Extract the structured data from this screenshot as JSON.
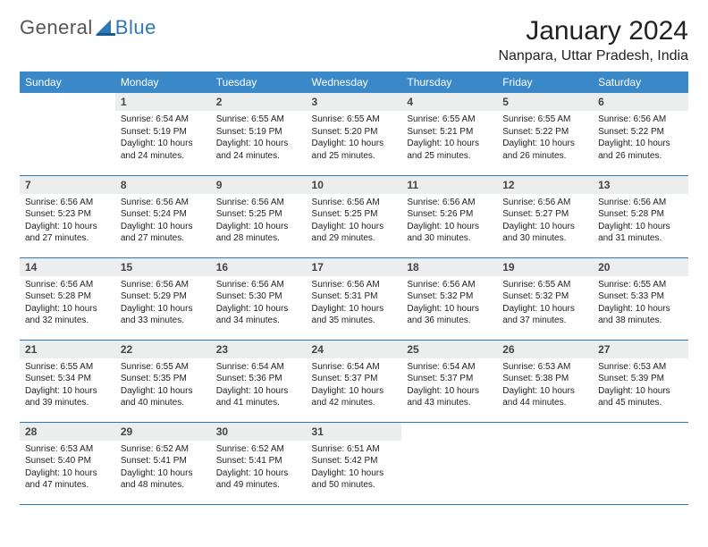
{
  "logo": {
    "text1": "General",
    "text2": "Blue"
  },
  "title": "January 2024",
  "location": "Nanpara, Uttar Pradesh, India",
  "colors": {
    "header_bg": "#3a88c8",
    "header_fg": "#ffffff",
    "daynum_bg": "#eceded",
    "border": "#2f78b7",
    "logo_gray": "#555555",
    "logo_blue": "#2f78b7"
  },
  "weekdays": [
    "Sunday",
    "Monday",
    "Tuesday",
    "Wednesday",
    "Thursday",
    "Friday",
    "Saturday"
  ],
  "weeks": [
    [
      null,
      {
        "n": "1",
        "sr": "6:54 AM",
        "ss": "5:19 PM",
        "dl": "10 hours and 24 minutes."
      },
      {
        "n": "2",
        "sr": "6:55 AM",
        "ss": "5:19 PM",
        "dl": "10 hours and 24 minutes."
      },
      {
        "n": "3",
        "sr": "6:55 AM",
        "ss": "5:20 PM",
        "dl": "10 hours and 25 minutes."
      },
      {
        "n": "4",
        "sr": "6:55 AM",
        "ss": "5:21 PM",
        "dl": "10 hours and 25 minutes."
      },
      {
        "n": "5",
        "sr": "6:55 AM",
        "ss": "5:22 PM",
        "dl": "10 hours and 26 minutes."
      },
      {
        "n": "6",
        "sr": "6:56 AM",
        "ss": "5:22 PM",
        "dl": "10 hours and 26 minutes."
      }
    ],
    [
      {
        "n": "7",
        "sr": "6:56 AM",
        "ss": "5:23 PM",
        "dl": "10 hours and 27 minutes."
      },
      {
        "n": "8",
        "sr": "6:56 AM",
        "ss": "5:24 PM",
        "dl": "10 hours and 27 minutes."
      },
      {
        "n": "9",
        "sr": "6:56 AM",
        "ss": "5:25 PM",
        "dl": "10 hours and 28 minutes."
      },
      {
        "n": "10",
        "sr": "6:56 AM",
        "ss": "5:25 PM",
        "dl": "10 hours and 29 minutes."
      },
      {
        "n": "11",
        "sr": "6:56 AM",
        "ss": "5:26 PM",
        "dl": "10 hours and 30 minutes."
      },
      {
        "n": "12",
        "sr": "6:56 AM",
        "ss": "5:27 PM",
        "dl": "10 hours and 30 minutes."
      },
      {
        "n": "13",
        "sr": "6:56 AM",
        "ss": "5:28 PM",
        "dl": "10 hours and 31 minutes."
      }
    ],
    [
      {
        "n": "14",
        "sr": "6:56 AM",
        "ss": "5:28 PM",
        "dl": "10 hours and 32 minutes."
      },
      {
        "n": "15",
        "sr": "6:56 AM",
        "ss": "5:29 PM",
        "dl": "10 hours and 33 minutes."
      },
      {
        "n": "16",
        "sr": "6:56 AM",
        "ss": "5:30 PM",
        "dl": "10 hours and 34 minutes."
      },
      {
        "n": "17",
        "sr": "6:56 AM",
        "ss": "5:31 PM",
        "dl": "10 hours and 35 minutes."
      },
      {
        "n": "18",
        "sr": "6:56 AM",
        "ss": "5:32 PM",
        "dl": "10 hours and 36 minutes."
      },
      {
        "n": "19",
        "sr": "6:55 AM",
        "ss": "5:32 PM",
        "dl": "10 hours and 37 minutes."
      },
      {
        "n": "20",
        "sr": "6:55 AM",
        "ss": "5:33 PM",
        "dl": "10 hours and 38 minutes."
      }
    ],
    [
      {
        "n": "21",
        "sr": "6:55 AM",
        "ss": "5:34 PM",
        "dl": "10 hours and 39 minutes."
      },
      {
        "n": "22",
        "sr": "6:55 AM",
        "ss": "5:35 PM",
        "dl": "10 hours and 40 minutes."
      },
      {
        "n": "23",
        "sr": "6:54 AM",
        "ss": "5:36 PM",
        "dl": "10 hours and 41 minutes."
      },
      {
        "n": "24",
        "sr": "6:54 AM",
        "ss": "5:37 PM",
        "dl": "10 hours and 42 minutes."
      },
      {
        "n": "25",
        "sr": "6:54 AM",
        "ss": "5:37 PM",
        "dl": "10 hours and 43 minutes."
      },
      {
        "n": "26",
        "sr": "6:53 AM",
        "ss": "5:38 PM",
        "dl": "10 hours and 44 minutes."
      },
      {
        "n": "27",
        "sr": "6:53 AM",
        "ss": "5:39 PM",
        "dl": "10 hours and 45 minutes."
      }
    ],
    [
      {
        "n": "28",
        "sr": "6:53 AM",
        "ss": "5:40 PM",
        "dl": "10 hours and 47 minutes."
      },
      {
        "n": "29",
        "sr": "6:52 AM",
        "ss": "5:41 PM",
        "dl": "10 hours and 48 minutes."
      },
      {
        "n": "30",
        "sr": "6:52 AM",
        "ss": "5:41 PM",
        "dl": "10 hours and 49 minutes."
      },
      {
        "n": "31",
        "sr": "6:51 AM",
        "ss": "5:42 PM",
        "dl": "10 hours and 50 minutes."
      },
      null,
      null,
      null
    ]
  ],
  "labels": {
    "sunrise": "Sunrise:",
    "sunset": "Sunset:",
    "daylight": "Daylight:"
  }
}
